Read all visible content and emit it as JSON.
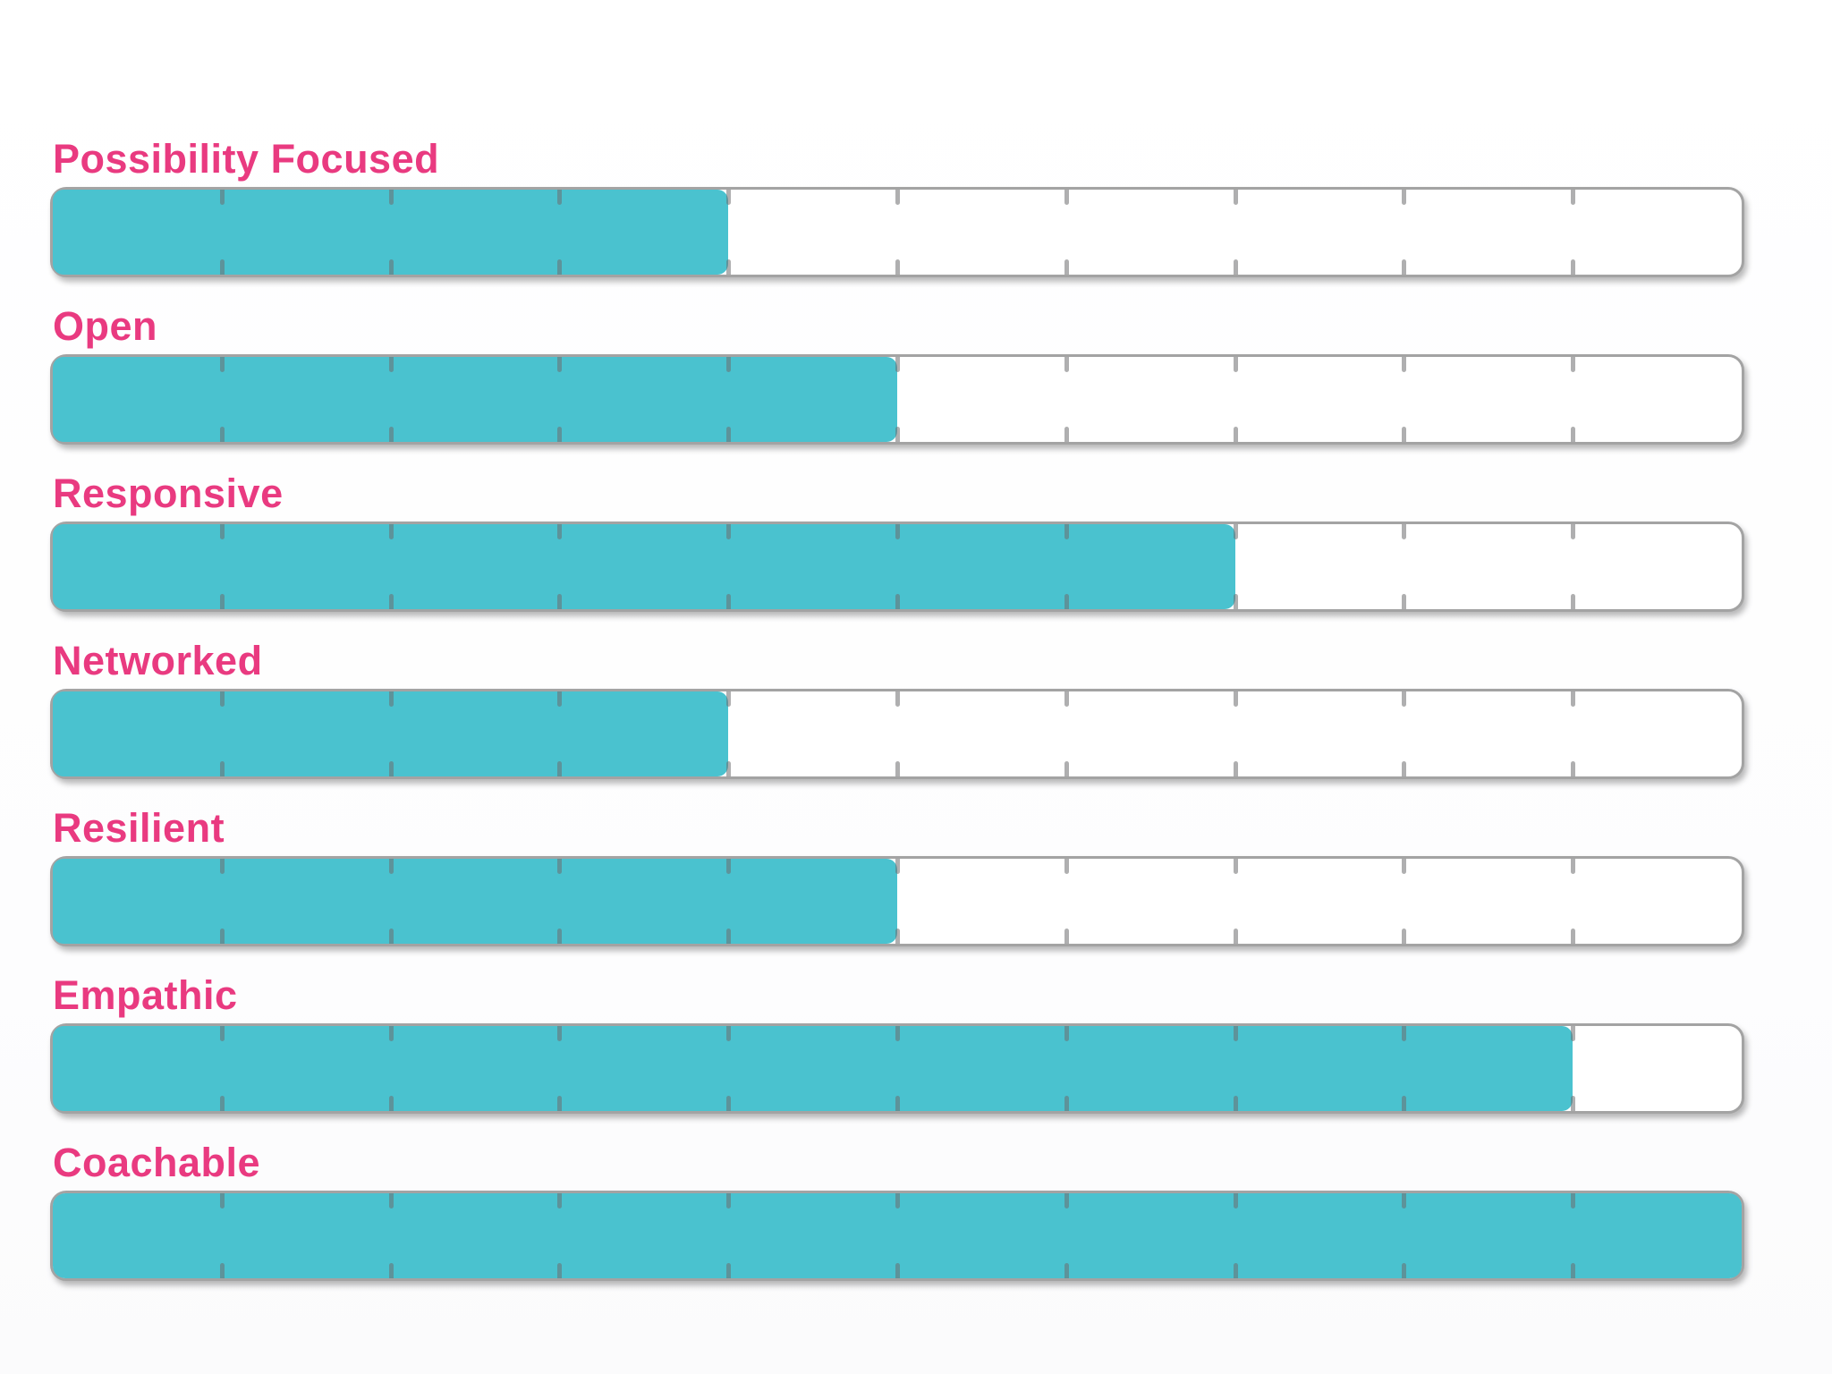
{
  "chart_data": {
    "type": "bar",
    "orientation": "horizontal",
    "title": "",
    "xlabel": "",
    "ylabel": "",
    "categories": [
      "Possibility Focused",
      "Open",
      "Responsive",
      "Networked",
      "Resilient",
      "Empathic",
      "Coachable"
    ],
    "values": [
      40,
      50,
      70,
      40,
      50,
      90,
      100
    ],
    "value_unit": "percent of full bar",
    "xlim": [
      0,
      100
    ],
    "tick_interval": 10,
    "grid": "tick marks at every 10% on top and bottom edges of each bar",
    "legend": "none",
    "data_labels": "none"
  },
  "rows": [
    {
      "label": "Possibility Focused",
      "value_percent": 40
    },
    {
      "label": "Open",
      "value_percent": 50
    },
    {
      "label": "Responsive",
      "value_percent": 70
    },
    {
      "label": "Networked",
      "value_percent": 40
    },
    {
      "label": "Resilient",
      "value_percent": 50
    },
    {
      "label": "Empathic",
      "value_percent": 90
    },
    {
      "label": "Coachable",
      "value_percent": 100
    }
  ],
  "styles": {
    "label_color": "#E93A80",
    "fill_color": "#4AC2CF",
    "track_color": "#FFFFFF",
    "border_color": "#A3A3A3",
    "tick_color_rgba": "rgba(110,110,112,0.55)",
    "background_color": "#FFFFFF"
  },
  "tick_positions_percent": [
    10,
    20,
    30,
    40,
    50,
    60,
    70,
    80,
    90
  ]
}
